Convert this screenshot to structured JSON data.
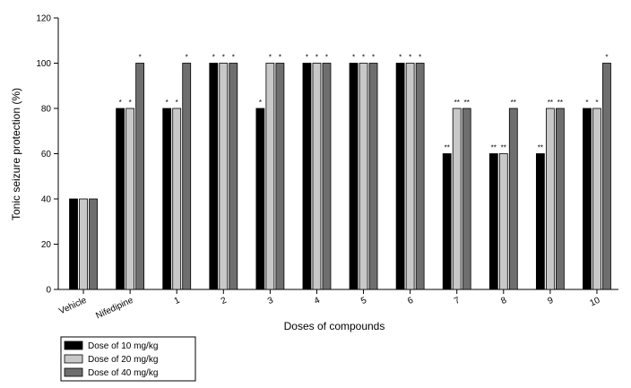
{
  "chart_data": {
    "type": "bar",
    "xlabel": "Doses of compounds",
    "ylabel": "Tonic seizure protection (%)",
    "ylim": [
      0,
      120
    ],
    "yticks": [
      0,
      20,
      40,
      60,
      80,
      100,
      120
    ],
    "categories": [
      "Vehicle",
      "Nifedipine",
      "1",
      "2",
      "3",
      "4",
      "5",
      "6",
      "7",
      "8",
      "9",
      "10"
    ],
    "series": [
      {
        "name": "Dose of 10 mg/kg",
        "color": "#000000",
        "values": [
          40,
          80,
          80,
          100,
          80,
          100,
          100,
          100,
          60,
          60,
          60,
          80
        ],
        "labels": [
          "",
          "*",
          "*",
          "*",
          "*",
          "*",
          "*",
          "*",
          "**",
          "**",
          "**",
          "*"
        ]
      },
      {
        "name": "Dose of 20 mg/kg",
        "color": "#c8c8c8",
        "values": [
          40,
          80,
          80,
          100,
          100,
          100,
          100,
          100,
          80,
          60,
          80,
          80
        ],
        "labels": [
          "",
          "*",
          "*",
          "*",
          "*",
          "*",
          "*",
          "*",
          "**",
          "**",
          "**",
          "*"
        ]
      },
      {
        "name": "Dose of 40 mg/kg",
        "color": "#6e6e6e",
        "values": [
          40,
          100,
          100,
          100,
          100,
          100,
          100,
          100,
          80,
          80,
          80,
          100
        ],
        "labels": [
          "",
          "*",
          "*",
          "*",
          "*",
          "*",
          "*",
          "*",
          "**",
          "**",
          "**",
          "*"
        ]
      }
    ],
    "legend_position": "bottom-left",
    "grid": false
  }
}
